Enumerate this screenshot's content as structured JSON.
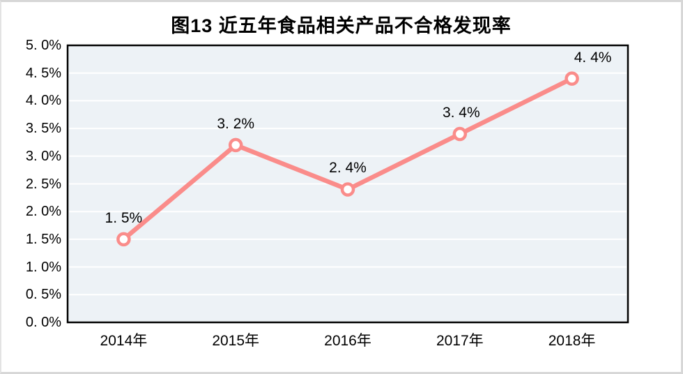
{
  "chart_data": {
    "type": "line",
    "title": "图13 近五年食品相关产品不合格发现率",
    "categories": [
      "2014年",
      "2015年",
      "2016年",
      "2017年",
      "2018年"
    ],
    "values": [
      1.5,
      3.2,
      2.4,
      3.4,
      4.4
    ],
    "point_labels": [
      "1. 5%",
      "3. 2%",
      "2. 4%",
      "3. 4%",
      "4. 4%"
    ],
    "y_ticks": [
      "5. 0%",
      "4. 5%",
      "4. 0%",
      "3. 5%",
      "3. 0%",
      "2. 5%",
      "2. 0%",
      "1. 5%",
      "1. 0%",
      "0. 5%",
      "0. 0%"
    ],
    "ylim": [
      0,
      5
    ],
    "y_step": 0.5,
    "xlabel": "",
    "ylabel": "",
    "grid": true,
    "legend": "none",
    "colors": {
      "line": "#FA8C8A",
      "marker_fill": "#FFFFFF",
      "plot_bg": "#EDF2F6",
      "gridline": "#FFFFFF",
      "axis_border": "#000000",
      "text": "#000000",
      "canvas_border": "#D7D7D7"
    }
  }
}
